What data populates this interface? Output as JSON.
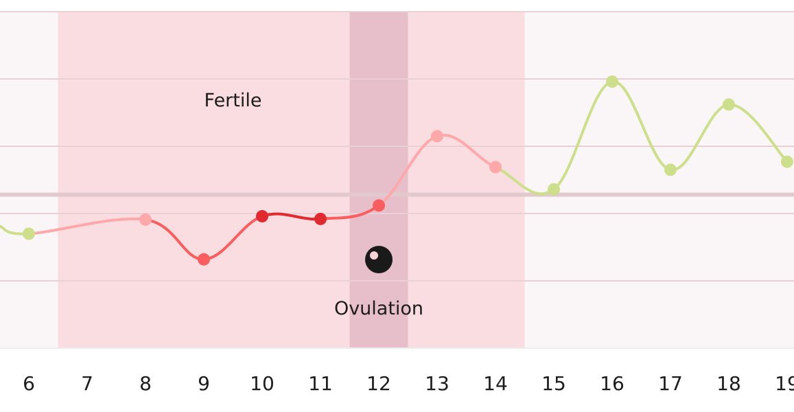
{
  "chart_data": {
    "type": "line",
    "x": [
      5,
      6,
      7,
      8,
      9,
      10,
      11,
      12,
      13,
      14,
      15,
      16,
      17,
      18,
      19
    ],
    "x_tick_labels": [
      "6",
      "7",
      "8",
      "9",
      "10",
      "11",
      "12",
      "13",
      "14",
      "15",
      "16",
      "17",
      "18",
      "19"
    ],
    "xlim": [
      5.5,
      19.1
    ],
    "ylim": [
      0,
      5
    ],
    "reference_level": 2.28,
    "series": [
      {
        "values": [
          null,
          1.7,
          null,
          1.91,
          1.32,
          1.96,
          1.92,
          2.12,
          3.15,
          2.69,
          2.36,
          3.96,
          2.65,
          3.62,
          2.77
        ],
        "markers": [
          false,
          true,
          false,
          true,
          true,
          true,
          true,
          true,
          true,
          true,
          true,
          true,
          true,
          true,
          true
        ],
        "line_start_value": 1.81
      }
    ],
    "bands": [
      {
        "label": "Fertile",
        "x_from": 6.5,
        "x_to": 14.5,
        "color": "#f9dde0"
      },
      {
        "label": "Ovulation",
        "x_from": 11.5,
        "x_to": 12.5,
        "color": "#e6bfcb"
      }
    ],
    "ovulation_marker_icon": "ovulation-eye-icon",
    "colors": {
      "plot_background": "#faf6f7",
      "grid": "#e8d0d5",
      "reference_line": "#e2c9ce",
      "green": "#cddf8a",
      "light_pink": "#ffa8aa",
      "coral": "#f95d5d",
      "red": "#e02a30",
      "baseline": "#ededed"
    },
    "grid": true
  }
}
